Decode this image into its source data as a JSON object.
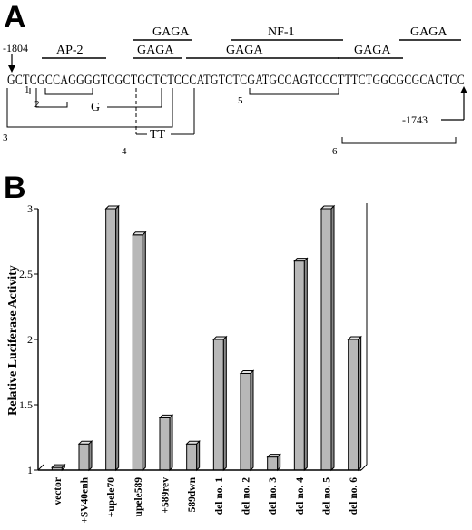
{
  "panel_a": {
    "label": "A",
    "sequence": "GCTCGCCAGGGGTCGCTGCTCTCCCATGTCTCGATGCCAGTCCCTTTCTGGCGCGCACTCC",
    "start_position": "-1804",
    "end_position": "-1743",
    "features": [
      {
        "id": "ap2",
        "label": "AP-2"
      },
      {
        "id": "gaga1",
        "label": "GAGA"
      },
      {
        "id": "gaga2",
        "label": "GAGA"
      },
      {
        "id": "nf1",
        "label": "NF-1"
      },
      {
        "id": "gaga3",
        "label": "GAGA"
      },
      {
        "id": "gaga4",
        "label": "GAGA"
      },
      {
        "id": "gaga5",
        "label": "GAGA"
      }
    ],
    "mutations": [
      {
        "id": "m1",
        "label": "1"
      },
      {
        "id": "m2",
        "label": "2"
      },
      {
        "id": "m3",
        "label": "3"
      },
      {
        "id": "m4",
        "label": "4"
      },
      {
        "id": "m5",
        "label": "5"
      },
      {
        "id": "m6",
        "label": "6"
      }
    ],
    "substitutions": {
      "g": "G",
      "tt": "TT"
    }
  },
  "panel_b": {
    "label": "B"
  },
  "chart_data": {
    "type": "bar",
    "title": "",
    "xlabel": "",
    "ylabel": "Relative Luciferase Activity",
    "ylim": [
      1,
      3
    ],
    "yticks": [
      "1",
      "1.5",
      "2",
      "2.5",
      "3"
    ],
    "categories": [
      "vector",
      "+SV40enh",
      "+upele70",
      "upele589",
      "+589rev",
      "+589dwn",
      "del no. 1",
      "del no. 2",
      "del no. 3",
      "del no. 4",
      "del no. 5",
      "del no. 6"
    ],
    "values": [
      1.02,
      1.2,
      3.0,
      2.8,
      1.4,
      1.2,
      2.0,
      1.74,
      1.1,
      2.6,
      3.0,
      2.0
    ],
    "grid": false,
    "bar_color": "#b8b8b8"
  }
}
